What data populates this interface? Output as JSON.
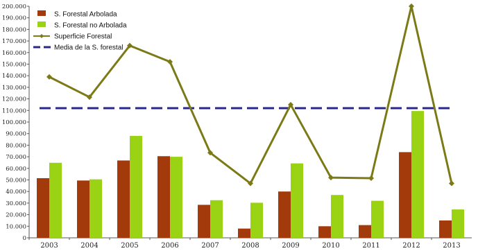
{
  "chart_data": {
    "type": "bar",
    "title": "",
    "xlabel": "",
    "ylabel": "",
    "ylim": [
      0,
      200000
    ],
    "ytick_step": 10000,
    "ytick_labels": [
      "0",
      "10.000",
      "20.000",
      "30.000",
      "40.000",
      "50.000",
      "60.000",
      "70.000",
      "80.000",
      "90.000",
      "100.000",
      "110.000",
      "120.000",
      "130.000",
      "140.000",
      "150.000",
      "160.000",
      "170.000",
      "180.000",
      "190.000",
      "200.000"
    ],
    "categories": [
      "2003",
      "2004",
      "2005",
      "2006",
      "2007",
      "2008",
      "2009",
      "2010",
      "2011",
      "2012",
      "2013"
    ],
    "series": [
      {
        "name": "S. Forestal Arbolada",
        "type": "bar",
        "color": "#A33A0C",
        "values": [
          51500,
          49500,
          66800,
          70500,
          28500,
          8000,
          40000,
          10000,
          11000,
          74000,
          15000
        ]
      },
      {
        "name": "S. Forestal no Arbolada",
        "type": "bar",
        "color": "#99D313",
        "values": [
          64800,
          50500,
          88000,
          70000,
          32500,
          30300,
          64300,
          37000,
          32000,
          109500,
          24500
        ]
      },
      {
        "name": "Superficie Forestal",
        "type": "line",
        "color": "#7B7A16",
        "marker": "diamond",
        "values": [
          139000,
          121500,
          166000,
          152000,
          73500,
          47000,
          115000,
          52000,
          51500,
          200000,
          47000
        ]
      },
      {
        "name": "Media de la S. forestal",
        "type": "line",
        "style": "dashed",
        "color": "#28288C",
        "value": 112000
      }
    ],
    "legend_position": "top-left",
    "grid": false
  }
}
